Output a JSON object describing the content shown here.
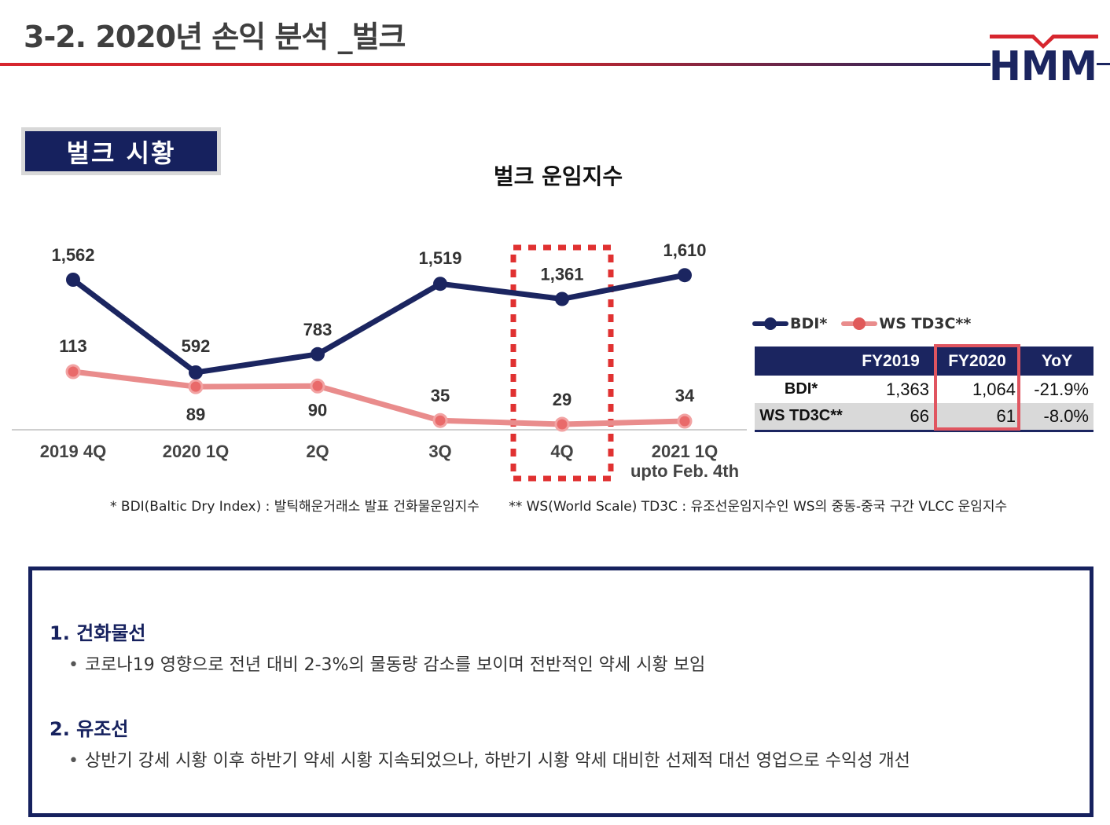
{
  "header": {
    "title": "3-2. 2020년 손익 분석 _벌크",
    "logo_text": "HMM",
    "colors": {
      "red": "#d7262e",
      "navy": "#1b2560"
    }
  },
  "section_badge": "벌크 시황",
  "chart_data": {
    "type": "line",
    "title": "벌크 운임지수",
    "categories": [
      "2019 4Q",
      "2020 1Q",
      "2Q",
      "3Q",
      "4Q",
      "2021 1Q"
    ],
    "category_sublabels": [
      "",
      "",
      "",
      "",
      "",
      "upto Feb. 4th"
    ],
    "series": [
      {
        "name": "BDI*",
        "color": "#1b2560",
        "values": [
          1562,
          592,
          783,
          1519,
          1361,
          1610
        ],
        "labels": [
          "1,562",
          "592",
          "783",
          "1,519",
          "1,361",
          "1,610"
        ]
      },
      {
        "name": "WS TD3C**",
        "color": "#e98c8c",
        "values": [
          113,
          89,
          90,
          35,
          29,
          34
        ],
        "labels": [
          "113",
          "89",
          "90",
          "35",
          "29",
          "34"
        ]
      }
    ],
    "highlight_category": "4Q",
    "legend": "right"
  },
  "table": {
    "headers": [
      "",
      "FY2019",
      "FY2020",
      "YoY"
    ],
    "rows": [
      {
        "label": "BDI*",
        "fy2019": "1,363",
        "fy2020": "1,064",
        "yoy": "-21.9%"
      },
      {
        "label": "WS TD3C**",
        "fy2019": "66",
        "fy2020": "61",
        "yoy": "-8.0%"
      }
    ],
    "highlight_column": "FY2020"
  },
  "footnotes": {
    "bdi": "* BDI(Baltic Dry Index) : 발틱해운거래소 발표 건화물운임지수",
    "ws": "** WS(World Scale) TD3C : 유조선운임지수인 WS의 중동-중국 구간 VLCC 운임지수"
  },
  "summary": {
    "items": [
      {
        "heading": "1. 건화물선",
        "bullet": "코로나19 영향으로 전년 대비 2-3%의 물동량 감소를 보이며 전반적인 약세 시황 보임"
      },
      {
        "heading": "2. 유조선",
        "bullet": "상반기 강세 시황 이후 하반기 약세 시황 지속되었으나, 하반기 시황 약세 대비한 선제적 대선 영업으로 수익성 개선"
      }
    ]
  }
}
